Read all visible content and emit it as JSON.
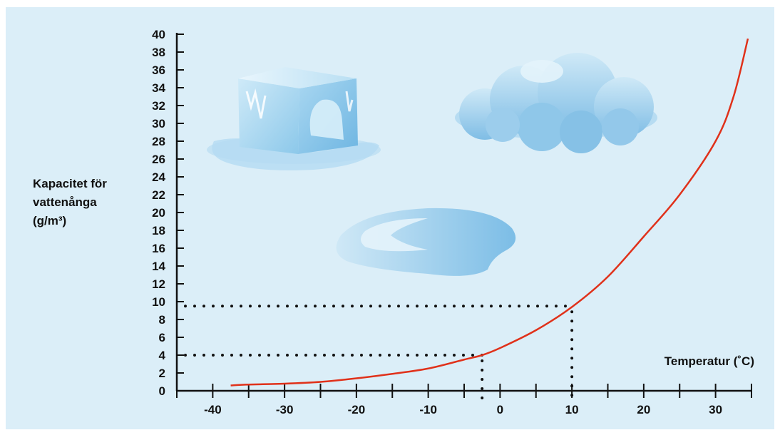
{
  "chart_data": {
    "type": "line",
    "title": "",
    "ylabel_lines": [
      "Kapacitet för",
      "vattenånga",
      "(g/m³)"
    ],
    "xlabel": "Temperatur (˚C)",
    "xlim": [
      -45,
      35
    ],
    "ylim": [
      0,
      40
    ],
    "x_ticks": [
      -40,
      -30,
      -20,
      -10,
      0,
      10,
      20,
      30
    ],
    "y_ticks": [
      0,
      2,
      4,
      6,
      8,
      10,
      12,
      14,
      16,
      18,
      20,
      22,
      24,
      26,
      28,
      30,
      32,
      34,
      36,
      38,
      40
    ],
    "grid": false,
    "series": [
      {
        "color": "#e0311a",
        "points": [
          [
            -37.5,
            0.6
          ],
          [
            -35,
            0.7
          ],
          [
            -30,
            0.8
          ],
          [
            -25,
            1.0
          ],
          [
            -20,
            1.4
          ],
          [
            -15,
            1.9
          ],
          [
            -10,
            2.5
          ],
          [
            -5,
            3.5
          ],
          [
            -2.5,
            4.0
          ],
          [
            0,
            4.8
          ],
          [
            5,
            6.8
          ],
          [
            10,
            9.4
          ],
          [
            15,
            12.8
          ],
          [
            20,
            17.3
          ],
          [
            25,
            22.0
          ],
          [
            30,
            28.0
          ],
          [
            32.5,
            33.0
          ],
          [
            34.5,
            39.5
          ]
        ]
      }
    ],
    "reference_lines": [
      {
        "x": -2.5,
        "y": 4
      },
      {
        "x": 10,
        "y": 9.5
      }
    ]
  },
  "colors": {
    "background": "#dbeef8",
    "axis": "#111111",
    "curve": "#e0311a",
    "dots": "#111111"
  },
  "illustrations": [
    "ice-cube",
    "cloud",
    "water-puddle"
  ]
}
